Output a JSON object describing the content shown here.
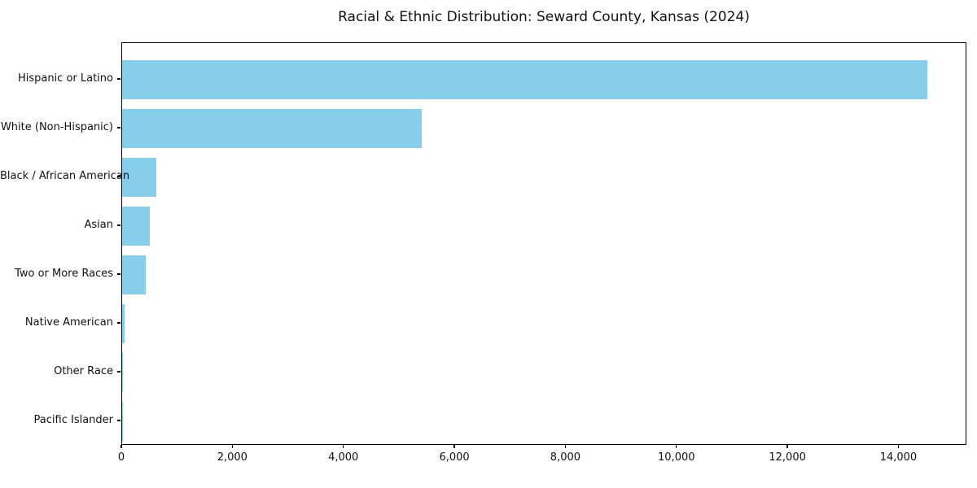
{
  "title": "Racial & Ethnic Distribution: Seward County, Kansas (2024)",
  "chart_data": {
    "type": "bar",
    "orientation": "horizontal",
    "title": "Racial & Ethnic Distribution: Seward County, Kansas (2024)",
    "xlabel": "",
    "ylabel": "",
    "categories": [
      "Hispanic or Latino",
      "White (Non-Hispanic)",
      "Black / African American",
      "Asian",
      "Two or More Races",
      "Native American",
      "Other Race",
      "Pacific Islander"
    ],
    "values": [
      14500,
      5400,
      620,
      500,
      430,
      40,
      10,
      5
    ],
    "xlim": [
      0,
      15225
    ],
    "x_ticks": [
      0,
      2000,
      4000,
      6000,
      8000,
      10000,
      12000,
      14000
    ],
    "x_tick_labels": [
      "0",
      "2,000",
      "4,000",
      "6,000",
      "8,000",
      "10,000",
      "12,000",
      "14,000"
    ],
    "bar_color": "#87ceeb",
    "spine_color": "#000000",
    "grid": false,
    "legend": null
  }
}
